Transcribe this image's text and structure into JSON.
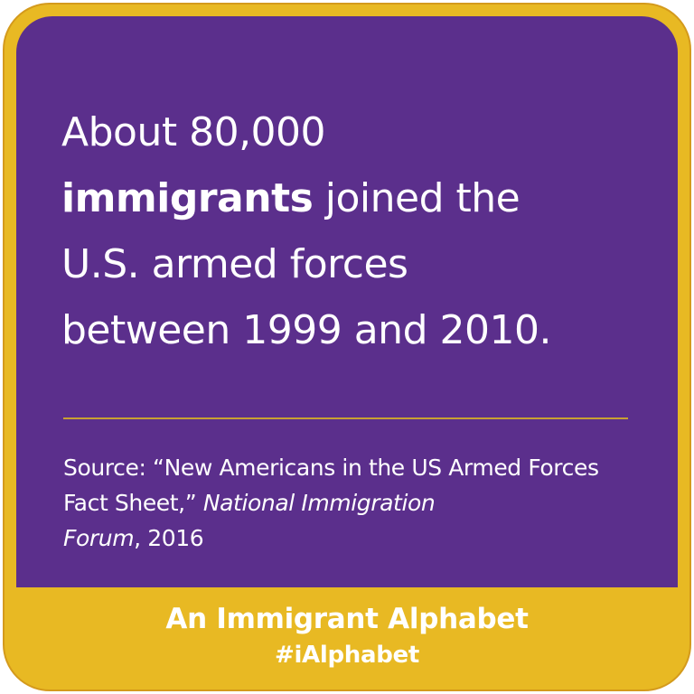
{
  "headline": {
    "line1": "About 80,000",
    "bold_word": "immigrants",
    "line2_rest": " joined the",
    "line3": "U.S. armed forces",
    "line4": "between 1999 and 2010."
  },
  "source": {
    "prefix": "Source: “New Americans in the US Armed Forces Fact Sheet,” ",
    "publication_part1": "National Immigration",
    "publication_part2": "Forum",
    "suffix": ", 2016"
  },
  "footer": {
    "title": "An Immigrant Alphabet",
    "hashtag": "#iAlphabet"
  },
  "colors": {
    "background_purple": "#5b2f8c",
    "frame_gold": "#e8b923",
    "text": "#ffffff"
  }
}
